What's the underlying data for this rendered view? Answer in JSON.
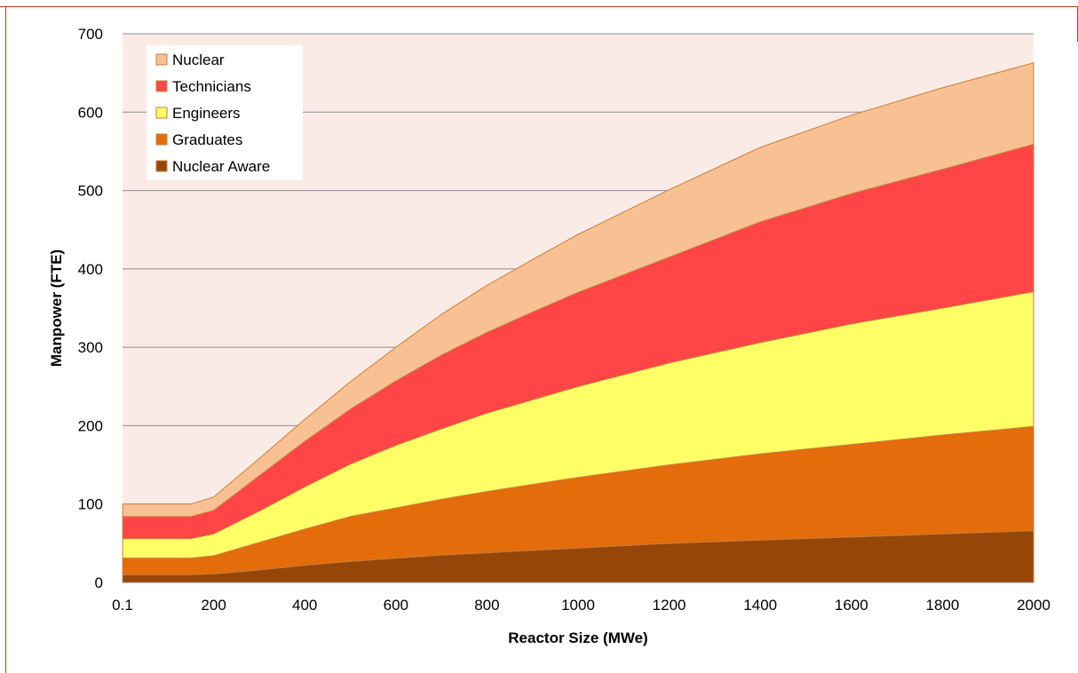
{
  "colors": {
    "frame": "#c0392b",
    "plot_background": "#fbebe6",
    "gridline": "#8c8c8c",
    "area_outline": "#c97e3f",
    "nuclear": "#f8c193",
    "technicians": "#ff4545",
    "engineers": "#ffff66",
    "graduates": "#e46c0a",
    "nuclear_aware": "#974609"
  },
  "chart_data": {
    "type": "area",
    "stacked": true,
    "xlabel": "Reactor Size (MWe)",
    "ylabel": "Manpower (FTE)",
    "ylim": [
      0,
      700
    ],
    "xlim": [
      0,
      2000
    ],
    "grid": "horizontal",
    "legend_position": "top-left",
    "x_tick_labels": [
      "0.1",
      "200",
      "400",
      "600",
      "800",
      "1000",
      "1200",
      "1400",
      "1600",
      "1800",
      "2000"
    ],
    "y_tick_labels": [
      "0",
      "100",
      "200",
      "300",
      "400",
      "500",
      "600",
      "700"
    ],
    "x": [
      0.1,
      150,
      200,
      300,
      400,
      500,
      600,
      700,
      800,
      900,
      1000,
      1200,
      1400,
      1600,
      1800,
      2000
    ],
    "series": [
      {
        "name": "Nuclear Aware",
        "color_key": "nuclear_aware",
        "values": [
          10,
          10,
          11,
          16,
          22,
          27,
          31,
          35,
          38,
          41,
          44,
          50,
          54,
          58,
          62,
          66
        ]
      },
      {
        "name": "Graduates",
        "color_key": "graduates",
        "values": [
          21,
          21,
          23,
          35,
          46,
          57,
          64,
          71,
          78,
          84,
          90,
          100,
          110,
          118,
          126,
          133
        ]
      },
      {
        "name": "Engineers",
        "color_key": "engineers",
        "values": [
          25,
          25,
          28,
          40,
          54,
          67,
          80,
          90,
          100,
          108,
          116,
          130,
          142,
          154,
          162,
          172
        ]
      },
      {
        "name": "Technicians",
        "color_key": "technicians",
        "values": [
          28,
          28,
          30,
          45,
          58,
          70,
          82,
          94,
          103,
          112,
          120,
          135,
          154,
          166,
          177,
          188
        ]
      },
      {
        "name": "Nuclear",
        "color_key": "nuclear",
        "values": [
          16,
          16,
          17,
          22,
          28,
          35,
          43,
          52,
          60,
          67,
          74,
          86,
          95,
          100,
          104,
          104
        ]
      }
    ]
  }
}
